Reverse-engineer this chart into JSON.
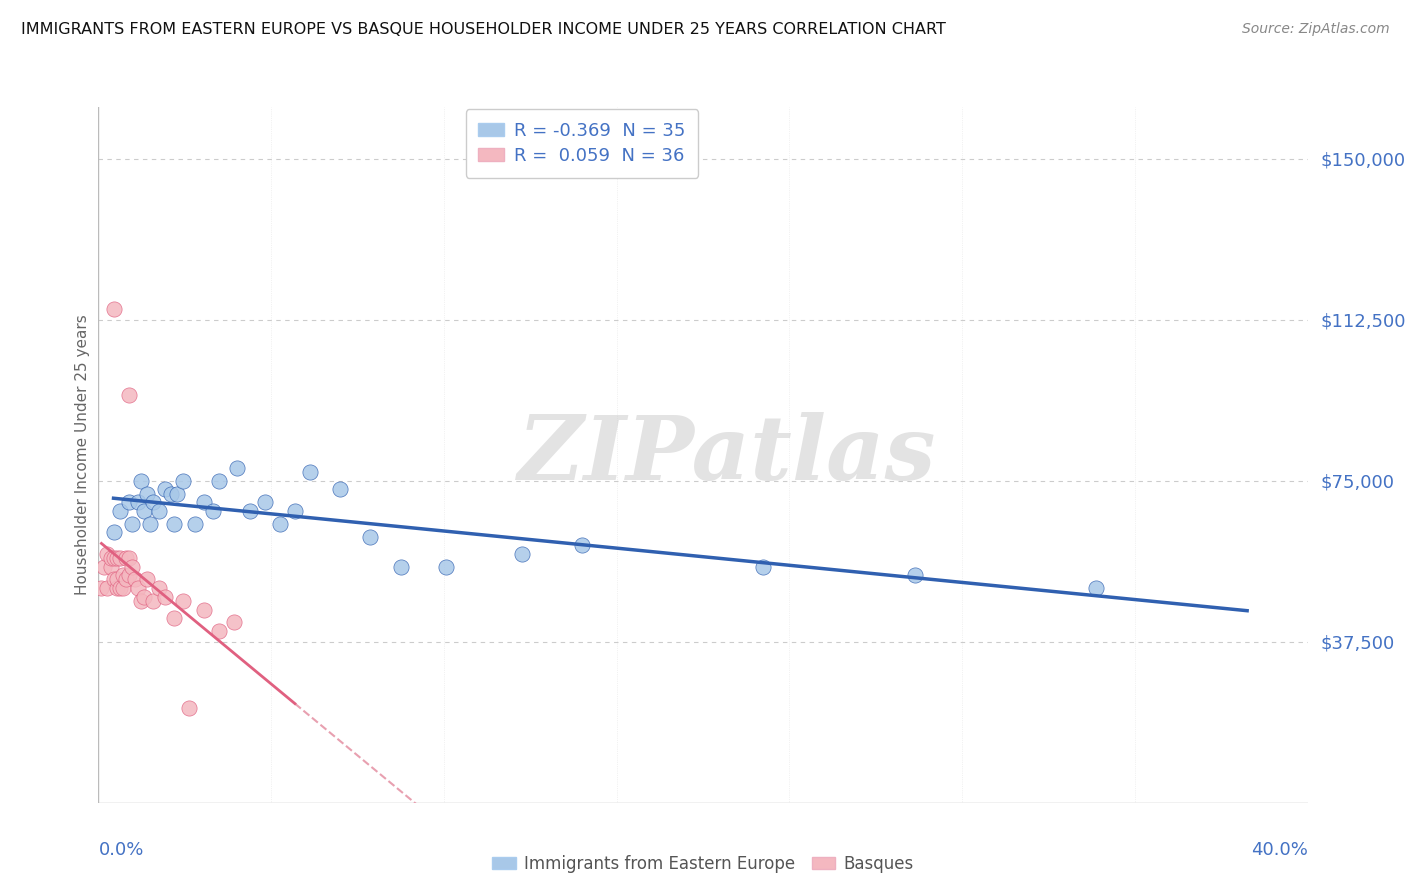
{
  "title": "IMMIGRANTS FROM EASTERN EUROPE VS BASQUE HOUSEHOLDER INCOME UNDER 25 YEARS CORRELATION CHART",
  "source": "Source: ZipAtlas.com",
  "ylabel": "Householder Income Under 25 years",
  "yticks": [
    0,
    37500,
    75000,
    112500,
    150000
  ],
  "ytick_labels": [
    "",
    "$37,500",
    "$75,000",
    "$112,500",
    "$150,000"
  ],
  "xlim": [
    0.0,
    0.4
  ],
  "ylim": [
    0,
    162000
  ],
  "legend_blue_r": "-0.369",
  "legend_blue_n": "35",
  "legend_pink_r": "0.059",
  "legend_pink_n": "36",
  "legend_blue_label": "Immigrants from Eastern Europe",
  "legend_pink_label": "Basques",
  "blue_color": "#a8c8e8",
  "pink_color": "#f4b8c0",
  "blue_line_color": "#3060b0",
  "pink_line_color": "#e06080",
  "pink_dash_color": "#e8a0b0",
  "watermark": "ZIPatlas",
  "blue_scatter_x": [
    0.005,
    0.007,
    0.01,
    0.011,
    0.013,
    0.014,
    0.015,
    0.016,
    0.017,
    0.018,
    0.02,
    0.022,
    0.024,
    0.025,
    0.026,
    0.028,
    0.032,
    0.035,
    0.038,
    0.04,
    0.046,
    0.05,
    0.055,
    0.06,
    0.065,
    0.07,
    0.08,
    0.09,
    0.1,
    0.115,
    0.14,
    0.16,
    0.22,
    0.27,
    0.33
  ],
  "blue_scatter_y": [
    63000,
    68000,
    70000,
    65000,
    70000,
    75000,
    68000,
    72000,
    65000,
    70000,
    68000,
    73000,
    72000,
    65000,
    72000,
    75000,
    65000,
    70000,
    68000,
    75000,
    78000,
    68000,
    70000,
    65000,
    68000,
    77000,
    73000,
    62000,
    55000,
    55000,
    58000,
    60000,
    55000,
    53000,
    50000
  ],
  "pink_scatter_x": [
    0.001,
    0.002,
    0.003,
    0.003,
    0.004,
    0.004,
    0.005,
    0.005,
    0.006,
    0.006,
    0.006,
    0.007,
    0.007,
    0.008,
    0.008,
    0.009,
    0.009,
    0.01,
    0.01,
    0.011,
    0.012,
    0.013,
    0.014,
    0.015,
    0.016,
    0.018,
    0.02,
    0.022,
    0.025,
    0.028,
    0.035,
    0.04,
    0.045,
    0.005,
    0.01,
    0.03
  ],
  "pink_scatter_y": [
    50000,
    55000,
    58000,
    50000,
    55000,
    57000,
    52000,
    57000,
    50000,
    57000,
    52000,
    50000,
    57000,
    53000,
    50000,
    57000,
    52000,
    53000,
    57000,
    55000,
    52000,
    50000,
    47000,
    48000,
    52000,
    47000,
    50000,
    48000,
    43000,
    47000,
    45000,
    40000,
    42000,
    115000,
    95000,
    22000
  ]
}
